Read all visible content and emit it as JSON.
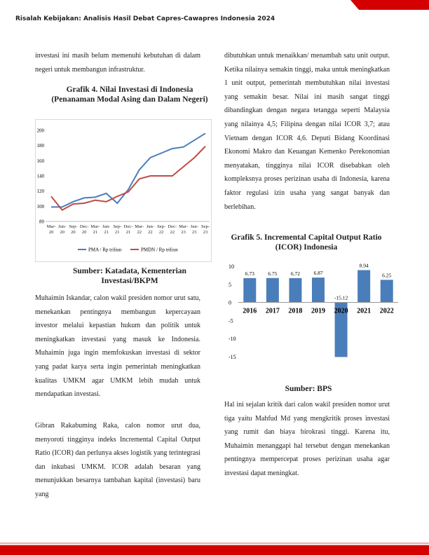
{
  "header": {
    "title": "Risalah Kebijakan: Analisis Hasil Debat Capres-Cawapres Indonesia 2024"
  },
  "paragraphs": [
    "investasi ini masih belum memenuhi kebutuhan di dalam negeri untuk membangun infrastruktur.",
    "Muhaimin Iskandar, calon wakil presiden nomor urut satu, menekankan pentingnya membangun kepercayaan investor melalui kepastian hukum dan politik untuk meningkatkan investasi yang masuk ke Indonesia. Muhaimin juga ingin memfokuskan investasi di sektor yang padat karya serta ingin pemerintah meningkatkan kualitas UMKM agar UMKM lebih mudah untuk mendapatkan investasi.",
    "Gibran Rakabuming Raka, calon nomor urut dua, menyoroti tingginya indeks Incremental Capital Output Ratio (ICOR) dan perlunya akses logistik yang terintegrasi dan inkubasi UMKM. ICOR adalah besaran yang menunjukkan besarnya tambahan kapital (investasi) baru yang",
    "dibutuhkan untuk menaikkan/ menambah satu unit output. Ketika nilainya semakin tinggi, maka untuk meningkatkan 1 unit output, pemerintah membutuhkan nilai investasi yang semakin besar. Nilai ini masih sangat tinggi dibandingkan dengan negara tetangga seperti Malaysia yang nilainya 4,5; Filipina dengan nilai ICOR 3,7; atau Vietnam dengan ICOR 4,6. Deputi Bidang Koordinasi Ekonomi Makro dan Keuangan Kemenko Perekonomian menyatakan, tingginya nilai ICOR disebabkan oleh kompleksnya proses perizinan usaha di Indonesia, karena faktor regulasi izin usaha yang sangat banyak dan berlebihan.",
    "Hal ini sejalan kritik dari calon wakil presiden nomor urut tiga yaitu Mahfud Md yang mengkritik proses investasi yang rumit dan biaya birokrasi tinggi. Karena itu, Muhaimin menanggapi hal tersebut dengan menekankan pentingnya mempercepat proses perizinan usaha agar investasi dapat meningkat."
  ],
  "chart_data": [
    {
      "type": "line",
      "title": "Grafik 4. Nilai Investasi di Indonesia (Penanaman Modal Asing dan Dalam Negeri)",
      "source": "Sumber: Katadata, Kementerian Investasi/BKPM",
      "categories": [
        "Mar-20",
        "Jun-20",
        "Sep-20",
        "Dec-20",
        "Mar-21",
        "Jun-21",
        "Sep-21",
        "Dec-21",
        "Mar-22",
        "Jun-22",
        "Sep-22",
        "Dec-22",
        "Mar-23",
        "Jun-23",
        "Sep-23"
      ],
      "series": [
        {
          "name": "PMA / Rp triliun",
          "color": "#4a7ebb",
          "values": [
            99,
            99,
            106,
            111,
            112,
            117,
            104,
            122,
            148,
            164,
            170,
            176,
            178,
            187,
            196
          ]
        },
        {
          "name": "PMDN / Rp triliun",
          "color": "#be4b48",
          "values": [
            113,
            95,
            103,
            104,
            108,
            106,
            113,
            119,
            136,
            140,
            140,
            140,
            152,
            164,
            179
          ]
        }
      ],
      "ylim": [
        80,
        200
      ],
      "yticks": [
        80,
        100,
        120,
        140,
        160,
        180,
        200
      ],
      "grid": false,
      "legend": "bottom"
    },
    {
      "type": "bar",
      "title": "Grafik 5. Incremental Capital Output Ratio (ICOR) Indonesia",
      "source": "Sumber: BPS",
      "categories": [
        "2016",
        "2017",
        "2018",
        "2019",
        "2020",
        "2021",
        "2022"
      ],
      "values": [
        6.73,
        6.75,
        6.72,
        6.87,
        -15.12,
        8.94,
        6.25
      ],
      "color": "#4a7ebb",
      "ylim": [
        -16,
        10
      ],
      "yticks": [
        -15,
        -10,
        -5,
        0,
        5,
        10
      ],
      "grid": false
    }
  ]
}
